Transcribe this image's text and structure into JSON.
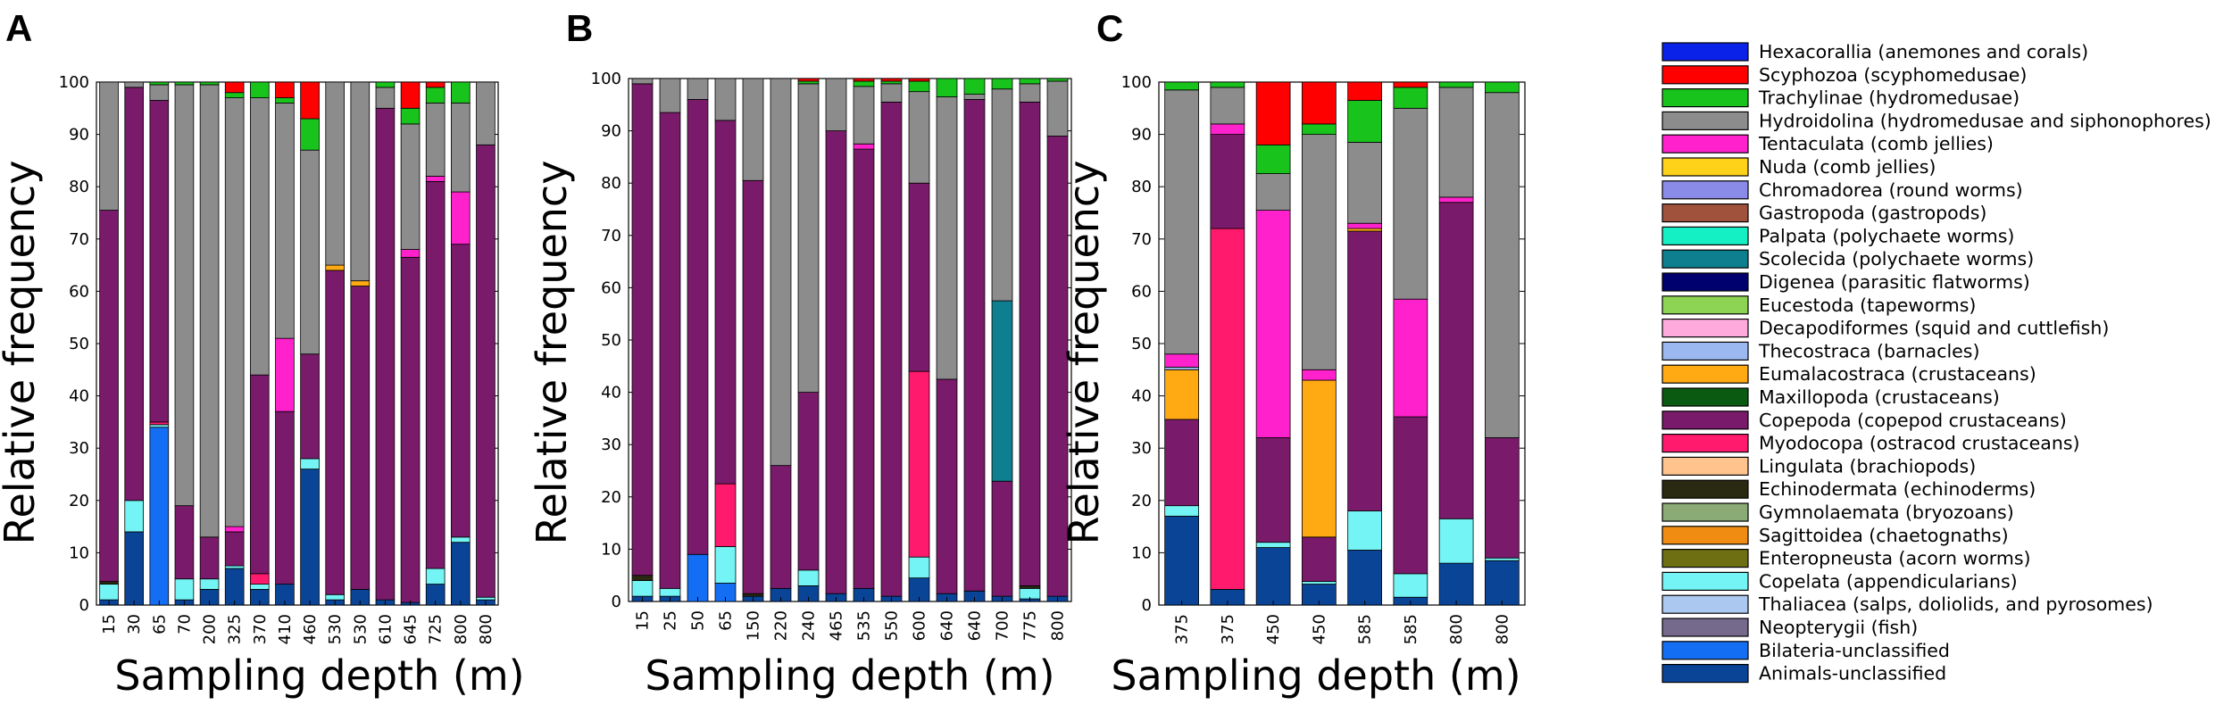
{
  "chart_data": [
    {
      "panel": "A",
      "type": "stacked-bar",
      "xlabel": "Sampling depth (m)",
      "ylabel": "Relative frequency",
      "ylim": [
        0,
        100
      ],
      "yticks": [
        0,
        10,
        20,
        30,
        40,
        50,
        60,
        70,
        80,
        90,
        100
      ],
      "categories": [
        "15",
        "30",
        "65",
        "70",
        "200",
        "325",
        "370",
        "410",
        "460",
        "530",
        "530",
        "610",
        "645",
        "725",
        "800",
        "800"
      ],
      "bars": [
        {
          "Animals-unclassified": 1,
          "Copelata (appendicularians)": 3,
          "Copepoda (copepod crustaceans)": 71,
          "Echinodermata (echinoderms)": 0.5,
          "Hydroidolina (hydromedusae and siphonophores)": 24.5
        },
        {
          "Animals-unclassified": 14,
          "Copelata (appendicularians)": 6,
          "Copepoda (copepod crustaceans)": 79,
          "Hydroidolina (hydromedusae and siphonophores)": 1
        },
        {
          "Bilateria-unclassified": 34,
          "Copelata (appendicularians)": 0.5,
          "Myodocopa (ostracod crustaceans)": 0.5,
          "Copepoda (copepod crustaceans)": 61.5,
          "Hydroidolina (hydromedusae and siphonophores)": 3,
          "Trachylinae (hydromedusae)": 0.5
        },
        {
          "Animals-unclassified": 1,
          "Copelata (appendicularians)": 4,
          "Copepoda (copepod crustaceans)": 14,
          "Hydroidolina (hydromedusae and siphonophores)": 80.5,
          "Trachylinae (hydromedusae)": 0.5
        },
        {
          "Animals-unclassified": 3,
          "Copelata (appendicularians)": 2,
          "Copepoda (copepod crustaceans)": 8,
          "Hydroidolina (hydromedusae and siphonophores)": 86.5,
          "Trachylinae (hydromedusae)": 0.5
        },
        {
          "Animals-unclassified": 7,
          "Copelata (appendicularians)": 0.5,
          "Copepoda (copepod crustaceans)": 6.5,
          "Tentaculata (comb jellies)": 1,
          "Hydroidolina (hydromedusae and siphonophores)": 82,
          "Trachylinae (hydromedusae)": 1,
          "Scyphozoa (scyphomedusae)": 2
        },
        {
          "Animals-unclassified": 3,
          "Copelata (appendicularians)": 1,
          "Myodocopa (ostracod crustaceans)": 2,
          "Copepoda (copepod crustaceans)": 38,
          "Hydroidolina (hydromedusae and siphonophores)": 53,
          "Trachylinae (hydromedusae)": 3,
          "Scyphozoa (scyphomedusae)": 0
        },
        {
          "Animals-unclassified": 4,
          "Copepoda (copepod crustaceans)": 33,
          "Tentaculata (comb jellies)": 14,
          "Hydroidolina (hydromedusae and siphonophores)": 45,
          "Trachylinae (hydromedusae)": 1,
          "Scyphozoa (scyphomedusae)": 3
        },
        {
          "Animals-unclassified": 26,
          "Copelata (appendicularians)": 2,
          "Copepoda (copepod crustaceans)": 20,
          "Hydroidolina (hydromedusae and siphonophores)": 39,
          "Trachylinae (hydromedusae)": 6,
          "Scyphozoa (scyphomedusae)": 7
        },
        {
          "Animals-unclassified": 1,
          "Copelata (appendicularians)": 1,
          "Copepoda (copepod crustaceans)": 62,
          "Hydroidolina (hydromedusae and siphonophores)": 35,
          "Eumalacostraca (crustaceans)": 1
        },
        {
          "Animals-unclassified": 3,
          "Copelata (appendicularians)": 0,
          "Copepoda (copepod crustaceans)": 58,
          "Hydroidolina (hydromedusae and siphonophores)": 38,
          "Eumalacostraca (crustaceans)": 1
        },
        {
          "Animals-unclassified": 1,
          "Copepoda (copepod crustaceans)": 94,
          "Hydroidolina (hydromedusae and siphonophores)": 4,
          "Trachylinae (hydromedusae)": 1
        },
        {
          "Animals-unclassified": 0.5,
          "Copepoda (copepod crustaceans)": 66,
          "Tentaculata (comb jellies)": 1.5,
          "Hydroidolina (hydromedusae and siphonophores)": 24,
          "Trachylinae (hydromedusae)": 3,
          "Scyphozoa (scyphomedusae)": 5
        },
        {
          "Animals-unclassified": 4,
          "Copelata (appendicularians)": 3,
          "Copepoda (copepod crustaceans)": 74,
          "Tentaculata (comb jellies)": 1,
          "Hydroidolina (hydromedusae and siphonophores)": 14,
          "Trachylinae (hydromedusae)": 3,
          "Scyphozoa (scyphomedusae)": 1
        },
        {
          "Animals-unclassified": 12,
          "Copelata (appendicularians)": 1,
          "Copepoda (copepod crustaceans)": 56,
          "Tentaculata (comb jellies)": 10,
          "Hydroidolina (hydromedusae and siphonophores)": 17,
          "Trachylinae (hydromedusae)": 4
        },
        {
          "Animals-unclassified": 1,
          "Copelata (appendicularians)": 0.5,
          "Copepoda (copepod crustaceans)": 86.5,
          "Hydroidolina (hydromedusae and siphonophores)": 12
        }
      ]
    },
    {
      "panel": "B",
      "type": "stacked-bar",
      "xlabel": "Sampling depth (m)",
      "ylabel": "Relative frequency",
      "ylim": [
        0,
        100
      ],
      "yticks": [
        0,
        10,
        20,
        30,
        40,
        50,
        60,
        70,
        80,
        90,
        100
      ],
      "categories": [
        "15",
        "25",
        "50",
        "65",
        "150",
        "220",
        "240",
        "465",
        "535",
        "550",
        "600",
        "640",
        "640",
        "700",
        "775",
        "800"
      ],
      "bars": [
        {
          "Animals-unclassified": 1,
          "Copelata (appendicularians)": 3,
          "Copepoda (copepod crustaceans)": 94,
          "Echinodermata (echinoderms)": 1,
          "Hydroidolina (hydromedusae and siphonophores)": 1
        },
        {
          "Animals-unclassified": 1,
          "Copelata (appendicularians)": 1.5,
          "Copepoda (copepod crustaceans)": 91,
          "Hydroidolina (hydromedusae and siphonophores)": 6.5
        },
        {
          "Bilateria-unclassified": 9,
          "Copepoda (copepod crustaceans)": 87,
          "Hydroidolina (hydromedusae and siphonophores)": 4
        },
        {
          "Bilateria-unclassified": 3.5,
          "Copelata (appendicularians)": 7,
          "Myodocopa (ostracod crustaceans)": 12,
          "Copepoda (copepod crustaceans)": 69.5,
          "Hydroidolina (hydromedusae and siphonophores)": 8
        },
        {
          "Animals-unclassified": 1,
          "Copepoda (copepod crustaceans)": 79,
          "Echinodermata (echinoderms)": 0.5,
          "Hydroidolina (hydromedusae and siphonophores)": 19.5
        },
        {
          "Animals-unclassified": 2.5,
          "Copepoda (copepod crustaceans)": 23.5,
          "Hydroidolina (hydromedusae and siphonophores)": 74
        },
        {
          "Animals-unclassified": 3,
          "Copelata (appendicularians)": 3,
          "Copepoda (copepod crustaceans)": 34,
          "Hydroidolina (hydromedusae and siphonophores)": 59,
          "Trachylinae (hydromedusae)": 0.5,
          "Scyphozoa (scyphomedusae)": 0.5
        },
        {
          "Animals-unclassified": 1.5,
          "Copepoda (copepod crustaceans)": 88.5,
          "Hydroidolina (hydromedusae and siphonophores)": 10
        },
        {
          "Animals-unclassified": 2.5,
          "Copepoda (copepod crustaceans)": 84,
          "Tentaculata (comb jellies)": 1,
          "Hydroidolina (hydromedusae and siphonophores)": 11,
          "Trachylinae (hydromedusae)": 1,
          "Scyphozoa (scyphomedusae)": 0.5
        },
        {
          "Animals-unclassified": 1,
          "Copepoda (copepod crustaceans)": 94.5,
          "Hydroidolina (hydromedusae and siphonophores)": 3.5,
          "Trachylinae (hydromedusae)": 0.5,
          "Scyphozoa (scyphomedusae)": 0.5
        },
        {
          "Animals-unclassified": 4.5,
          "Copelata (appendicularians)": 4,
          "Myodocopa (ostracod crustaceans)": 35.5,
          "Copepoda (copepod crustaceans)": 36,
          "Hydroidolina (hydromedusae and siphonophores)": 17.5,
          "Trachylinae (hydromedusae)": 2,
          "Scyphozoa (scyphomedusae)": 0.5
        },
        {
          "Animals-unclassified": 1.5,
          "Copepoda (copepod crustaceans)": 41,
          "Hydroidolina (hydromedusae and siphonophores)": 54,
          "Trachylinae (hydromedusae)": 3.5
        },
        {
          "Animals-unclassified": 2,
          "Copepoda (copepod crustaceans)": 94,
          "Hydroidolina (hydromedusae and siphonophores)": 1,
          "Trachylinae (hydromedusae)": 3
        },
        {
          "Animals-unclassified": 1,
          "Copepoda (copepod crustaceans)": 22,
          "Scolecida (polychaete worms)": 34.5,
          "Hydroidolina (hydromedusae and siphonophores)": 40.5,
          "Trachylinae (hydromedusae)": 2
        },
        {
          "Animals-unclassified": 0.5,
          "Copelata (appendicularians)": 2,
          "Copepoda (copepod crustaceans)": 92.5,
          "Echinodermata (echinoderms)": 0.5,
          "Hydroidolina (hydromedusae and siphonophores)": 3.5,
          "Trachylinae (hydromedusae)": 1
        },
        {
          "Animals-unclassified": 1,
          "Copepoda (copepod crustaceans)": 88,
          "Hydroidolina (hydromedusae and siphonophores)": 10.5,
          "Trachylinae (hydromedusae)": 0.5
        }
      ]
    },
    {
      "panel": "C",
      "type": "stacked-bar",
      "xlabel": "Sampling depth (m)",
      "ylabel": "Relative frequency",
      "ylim": [
        0,
        100
      ],
      "yticks": [
        0,
        10,
        20,
        30,
        40,
        50,
        60,
        70,
        80,
        90,
        100
      ],
      "categories": [
        "375",
        "375",
        "450",
        "450",
        "585",
        "585",
        "800",
        "800"
      ],
      "bars": [
        {
          "Animals-unclassified": 17,
          "Copelata (appendicularians)": 2,
          "Copepoda (copepod crustaceans)": 16.5,
          "Eumalacostraca (crustaceans)": 9.5,
          "Thecostraca (barnacles)": 0.5,
          "Tentaculata (comb jellies)": 2.5,
          "Hydroidolina (hydromedusae and siphonophores)": 50.5,
          "Trachylinae (hydromedusae)": 1.5
        },
        {
          "Animals-unclassified": 3,
          "Myodocopa (ostracod crustaceans)": 69,
          "Copepoda (copepod crustaceans)": 18,
          "Tentaculata (comb jellies)": 2,
          "Hydroidolina (hydromedusae and siphonophores)": 7,
          "Trachylinae (hydromedusae)": 1
        },
        {
          "Animals-unclassified": 11,
          "Copelata (appendicularians)": 1,
          "Copepoda (copepod crustaceans)": 20,
          "Tentaculata (comb jellies)": 43.5,
          "Hydroidolina (hydromedusae and siphonophores)": 7,
          "Trachylinae (hydromedusae)": 5.5,
          "Scyphozoa (scyphomedusae)": 12
        },
        {
          "Animals-unclassified": 4,
          "Copelata (appendicularians)": 0.5,
          "Copepoda (copepod crustaceans)": 8.5,
          "Eumalacostraca (crustaceans)": 30,
          "Tentaculata (comb jellies)": 2,
          "Hydroidolina (hydromedusae and siphonophores)": 45,
          "Trachylinae (hydromedusae)": 2,
          "Scyphozoa (scyphomedusae)": 8
        },
        {
          "Animals-unclassified": 10.5,
          "Copelata (appendicularians)": 7.5,
          "Copepoda (copepod crustaceans)": 53.5,
          "Eumalacostraca (crustaceans)": 0.5,
          "Tentaculata (comb jellies)": 1,
          "Hydroidolina (hydromedusae and siphonophores)": 15.5,
          "Trachylinae (hydromedusae)": 8,
          "Scyphozoa (scyphomedusae)": 3.5
        },
        {
          "Animals-unclassified": 1.5,
          "Copelata (appendicularians)": 4.5,
          "Copepoda (copepod crustaceans)": 30,
          "Tentaculata (comb jellies)": 22.5,
          "Hydroidolina (hydromedusae and siphonophores)": 36.5,
          "Trachylinae (hydromedusae)": 4,
          "Scyphozoa (scyphomedusae)": 1
        },
        {
          "Animals-unclassified": 8,
          "Copelata (appendicularians)": 8.5,
          "Copepoda (copepod crustaceans)": 60.5,
          "Tentaculata (comb jellies)": 1,
          "Hydroidolina (hydromedusae and siphonophores)": 21,
          "Trachylinae (hydromedusae)": 1
        },
        {
          "Animals-unclassified": 8.5,
          "Copelata (appendicularians)": 0.5,
          "Copepoda (copepod crustaceans)": 23,
          "Hydroidolina (hydromedusae and siphonophores)": 66,
          "Trachylinae (hydromedusae)": 2
        }
      ]
    }
  ],
  "legend": [
    {
      "label": "Hexacorallia (anemones and corals)",
      "color": "#0a22e8"
    },
    {
      "label": "Scyphozoa (scyphomedusae)",
      "color": "#ff0000"
    },
    {
      "label": "Trachylinae (hydromedusae)",
      "color": "#18c41c"
    },
    {
      "label": "Hydroidolina (hydromedusae and siphonophores)",
      "color": "#8c8c8c"
    },
    {
      "label": "Tentaculata (comb jellies)",
      "color": "#ff22cc"
    },
    {
      "label": "Nuda (comb jellies)",
      "color": "#ffd21a"
    },
    {
      "label": "Chromadorea (round worms)",
      "color": "#8a8ae8"
    },
    {
      "label": "Gastropoda (gastropods)",
      "color": "#a0523c"
    },
    {
      "label": "Palpata (polychaete worms)",
      "color": "#14f0c4"
    },
    {
      "label": "Scolecida (polychaete worms)",
      "color": "#0e7f8e"
    },
    {
      "label": "Digenea (parasitic flatworms)",
      "color": "#00006e"
    },
    {
      "label": "Eucestoda (tapeworms)",
      "color": "#8ed454"
    },
    {
      "label": "Decapodiformes (squid and cuttlefish)",
      "color": "#ffaadc"
    },
    {
      "label": "Thecostraca (barnacles)",
      "color": "#9cb8f0"
    },
    {
      "label": "Eumalacostraca (crustaceans)",
      "color": "#ffaa12"
    },
    {
      "label": "Maxillopoda (crustaceans)",
      "color": "#0a5a12"
    },
    {
      "label": "Copepoda (copepod crustaceans)",
      "color": "#7a1a6a"
    },
    {
      "label": "Myodocopa (ostracod crustaceans)",
      "color": "#ff1a6e"
    },
    {
      "label": "Lingulata (brachiopods)",
      "color": "#ffc48e"
    },
    {
      "label": "Echinodermata (echinoderms)",
      "color": "#2a2a12"
    },
    {
      "label": "Gymnolaemata (bryozoans)",
      "color": "#8aaa76"
    },
    {
      "label": "Sagittoidea (chaetognaths)",
      "color": "#f08c12"
    },
    {
      "label": "Enteropneusta (acorn worms)",
      "color": "#6e6e12"
    },
    {
      "label": "Copelata (appendicularians)",
      "color": "#74f4f4"
    },
    {
      "label": "Thaliacea (salps, doliolids, and pyrosomes)",
      "color": "#aac8f0"
    },
    {
      "label": "Neopterygii (fish)",
      "color": "#766a8c"
    },
    {
      "label": "Bilateria-unclassified",
      "color": "#146ef4"
    },
    {
      "label": "Animals-unclassified",
      "color": "#0a4496"
    }
  ]
}
